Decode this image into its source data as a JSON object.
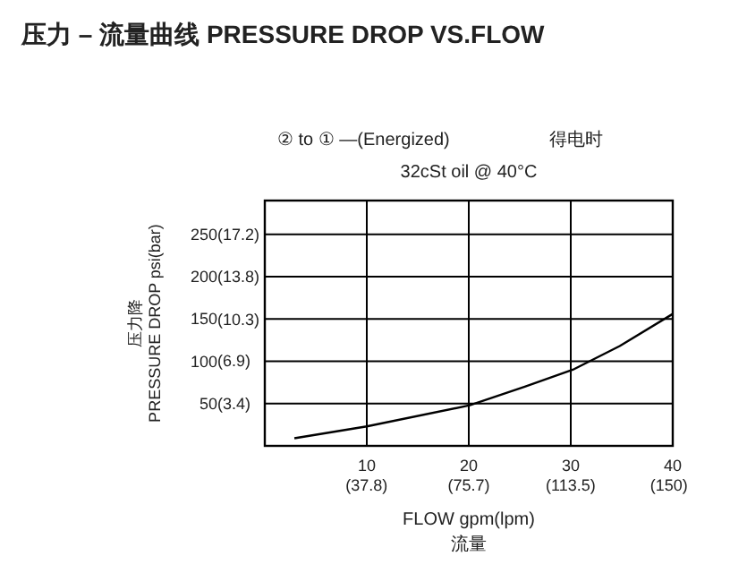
{
  "chart_data": {
    "type": "line",
    "title": "压力 – 流量曲线 PRESSURE DROP VS.FLOW",
    "subtitle": "32cSt oil @ 40°C",
    "annotations": [
      "② to ① —(Energized)",
      "得电时"
    ],
    "xlabel": "FLOW gpm(lpm)\n流量",
    "ylabel": "压力降\nPRESSURE DROP psi(bar)",
    "series": [
      {
        "color": "#000000",
        "x": [
          2.9,
          10,
          20.1,
          25.5,
          30.2,
          34.8,
          40
        ],
        "values": [
          9,
          23,
          48,
          70,
          90,
          118,
          156
        ]
      }
    ],
    "xlim": [
      0,
      40
    ],
    "ylim": [
      0,
      290
    ],
    "xticks": [
      10,
      20,
      30,
      40
    ],
    "x2lim": [
      0,
      151.4
    ],
    "x2ticks": [
      {
        "value": 37.8,
        "label": "(37.8)"
      },
      {
        "value": 75.7,
        "label": "(75.7)"
      },
      {
        "value": 113.5,
        "label": "(113.5)"
      },
      {
        "value": 150,
        "label": "(150)"
      }
    ],
    "yticks": [
      50,
      100,
      150,
      200,
      250
    ],
    "y2lim": [
      0,
      20.0
    ],
    "y2ticks": [
      {
        "value": 3.4,
        "label": "(3.4)"
      },
      {
        "value": 6.9,
        "label": "(6.9)"
      },
      {
        "value": 10.3,
        "label": "(10.3)"
      },
      {
        "value": 13.8,
        "label": "(13.8)"
      },
      {
        "value": 17.2,
        "label": "(17.2)"
      }
    ],
    "grid": true,
    "marker": "none",
    "line_style": "solid"
  }
}
